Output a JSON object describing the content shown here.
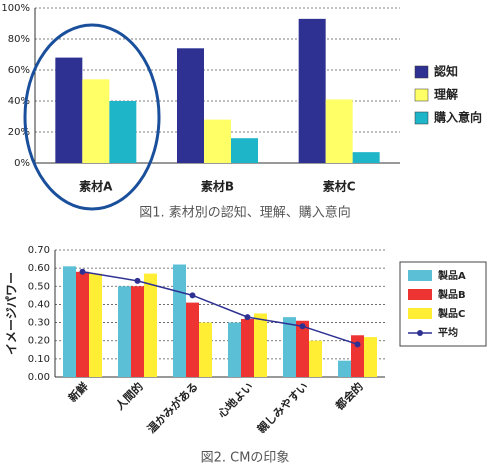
{
  "chart_data": [
    {
      "type": "bar",
      "caption": "図1. 素材別の認知、理解、購入意向",
      "categories": [
        "素材A",
        "素材B",
        "素材C"
      ],
      "series": [
        {
          "name": "認知",
          "color": "#2e3192",
          "values": [
            68,
            74,
            93
          ]
        },
        {
          "name": "理解",
          "color": "#ffff66",
          "values": [
            54,
            28,
            41
          ]
        },
        {
          "name": "購入意向",
          "color": "#1fb5c9",
          "values": [
            40,
            16,
            7
          ]
        }
      ],
      "ylim": [
        0,
        100
      ],
      "yticks": [
        {
          "value": 0,
          "label": "0%"
        },
        {
          "value": 20,
          "label": "20%"
        },
        {
          "value": 40,
          "label": "40%"
        },
        {
          "value": 60,
          "label": "60%"
        },
        {
          "value": 80,
          "label": "80%"
        },
        {
          "value": 100,
          "label": "100%"
        }
      ],
      "grid": true,
      "legend": "right"
    },
    {
      "type": "bar",
      "caption": "図2. CMの印象",
      "y_label": "イメージパワー",
      "categories": [
        "新鮮",
        "人間的",
        "温かみがある",
        "心地よい",
        "親しみやすい",
        "都会的"
      ],
      "series": [
        {
          "name": "製品A",
          "color": "#5bc0d6",
          "values": [
            0.61,
            0.5,
            0.62,
            0.3,
            0.33,
            0.09
          ]
        },
        {
          "name": "製品B",
          "color": "#ee3333",
          "values": [
            0.58,
            0.5,
            0.41,
            0.32,
            0.31,
            0.23
          ]
        },
        {
          "name": "製品C",
          "color": "#ffee33",
          "values": [
            0.57,
            0.57,
            0.3,
            0.35,
            0.2,
            0.22
          ]
        },
        {
          "name": "平均",
          "type": "line",
          "color": "#2e3192",
          "values": [
            0.58,
            0.53,
            0.45,
            0.33,
            0.28,
            0.18
          ]
        }
      ],
      "ylim": [
        0,
        0.7
      ],
      "yticks": [
        {
          "value": 0,
          "label": "0.00"
        },
        {
          "value": 0.1,
          "label": "0.10"
        },
        {
          "value": 0.2,
          "label": "0.20"
        },
        {
          "value": 0.3,
          "label": "0.30"
        },
        {
          "value": 0.4,
          "label": "0.40"
        },
        {
          "value": 0.5,
          "label": "0.50"
        },
        {
          "value": 0.6,
          "label": "0.60"
        },
        {
          "value": 0.7,
          "label": "0.70"
        }
      ],
      "grid": true,
      "legend": "right"
    }
  ]
}
